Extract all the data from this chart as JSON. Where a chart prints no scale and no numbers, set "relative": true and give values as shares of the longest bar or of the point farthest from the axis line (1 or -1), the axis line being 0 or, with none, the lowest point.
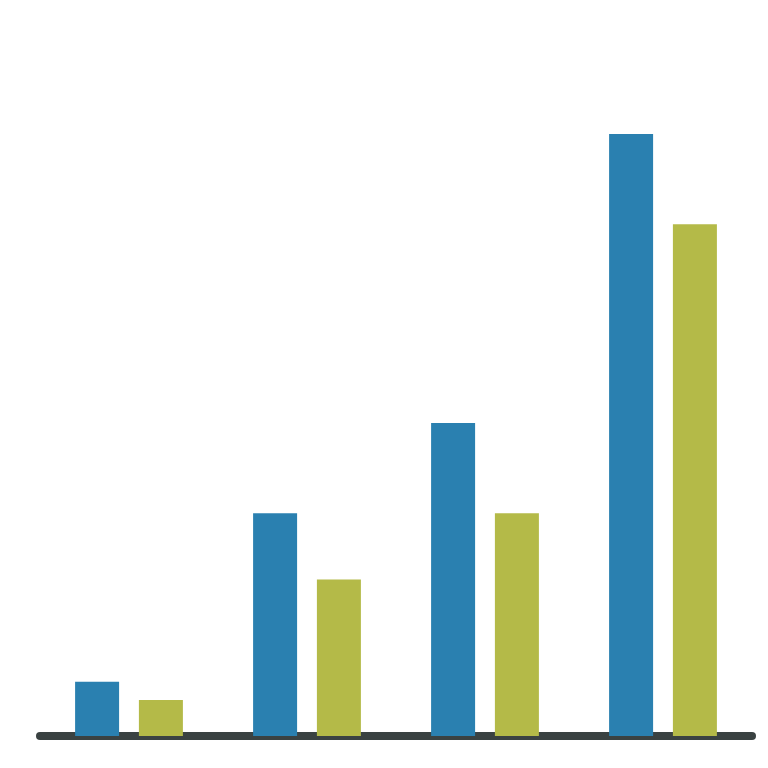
{
  "chart_data": {
    "type": "bar",
    "relative": true,
    "categories": [
      null,
      null,
      null,
      null
    ],
    "series": [
      {
        "color": "#2a80b0",
        "values": [
          0.09,
          0.37,
          0.52,
          1
        ]
      },
      {
        "color": "#b4ba48",
        "values": [
          0.06,
          0.26,
          0.37,
          0.85
        ]
      }
    ]
  }
}
